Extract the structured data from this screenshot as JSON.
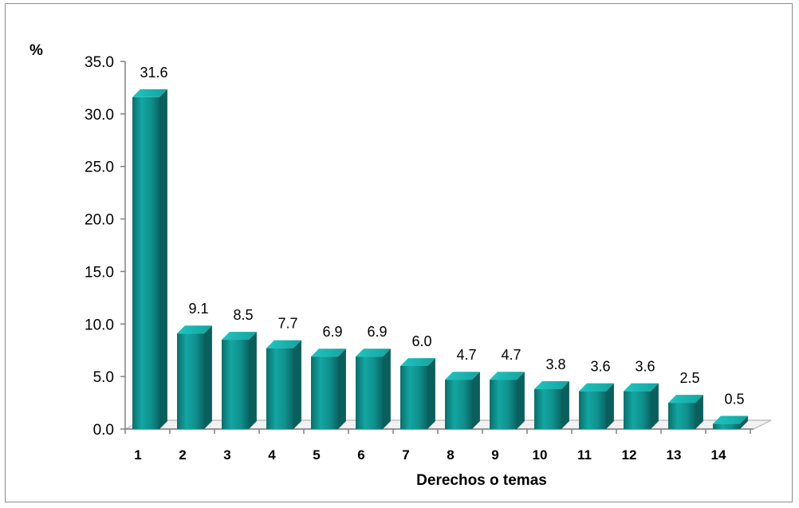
{
  "chart_data": {
    "type": "bar",
    "style": "3d-column",
    "title": "",
    "ylabel": "%",
    "xlabel": "Derechos o temas",
    "ylim": [
      0,
      35
    ],
    "yticks": [
      "0.0",
      "5.0",
      "10.0",
      "15.0",
      "20.0",
      "25.0",
      "30.0",
      "35.0"
    ],
    "categories": [
      "1",
      "2",
      "3",
      "4",
      "5",
      "6",
      "7",
      "8",
      "9",
      "10",
      "11",
      "12",
      "13",
      "14"
    ],
    "values": [
      31.6,
      9.1,
      8.5,
      7.7,
      6.9,
      6.9,
      6.0,
      4.7,
      4.7,
      3.8,
      3.6,
      3.6,
      2.5,
      0.5
    ],
    "data_labels": [
      "31.6",
      "9.1",
      "8.5",
      "7.7",
      "6.9",
      "6.9",
      "6.0",
      "4.7",
      "4.7",
      "3.8",
      "3.6",
      "3.6",
      "2.5",
      "0.5"
    ],
    "grid": false,
    "legend": "none",
    "colors": {
      "bar_front": "#0f8f8c",
      "bar_top": "#17b5b0",
      "bar_side": "#0a5f5d",
      "floor": "#bfbfbf"
    }
  }
}
